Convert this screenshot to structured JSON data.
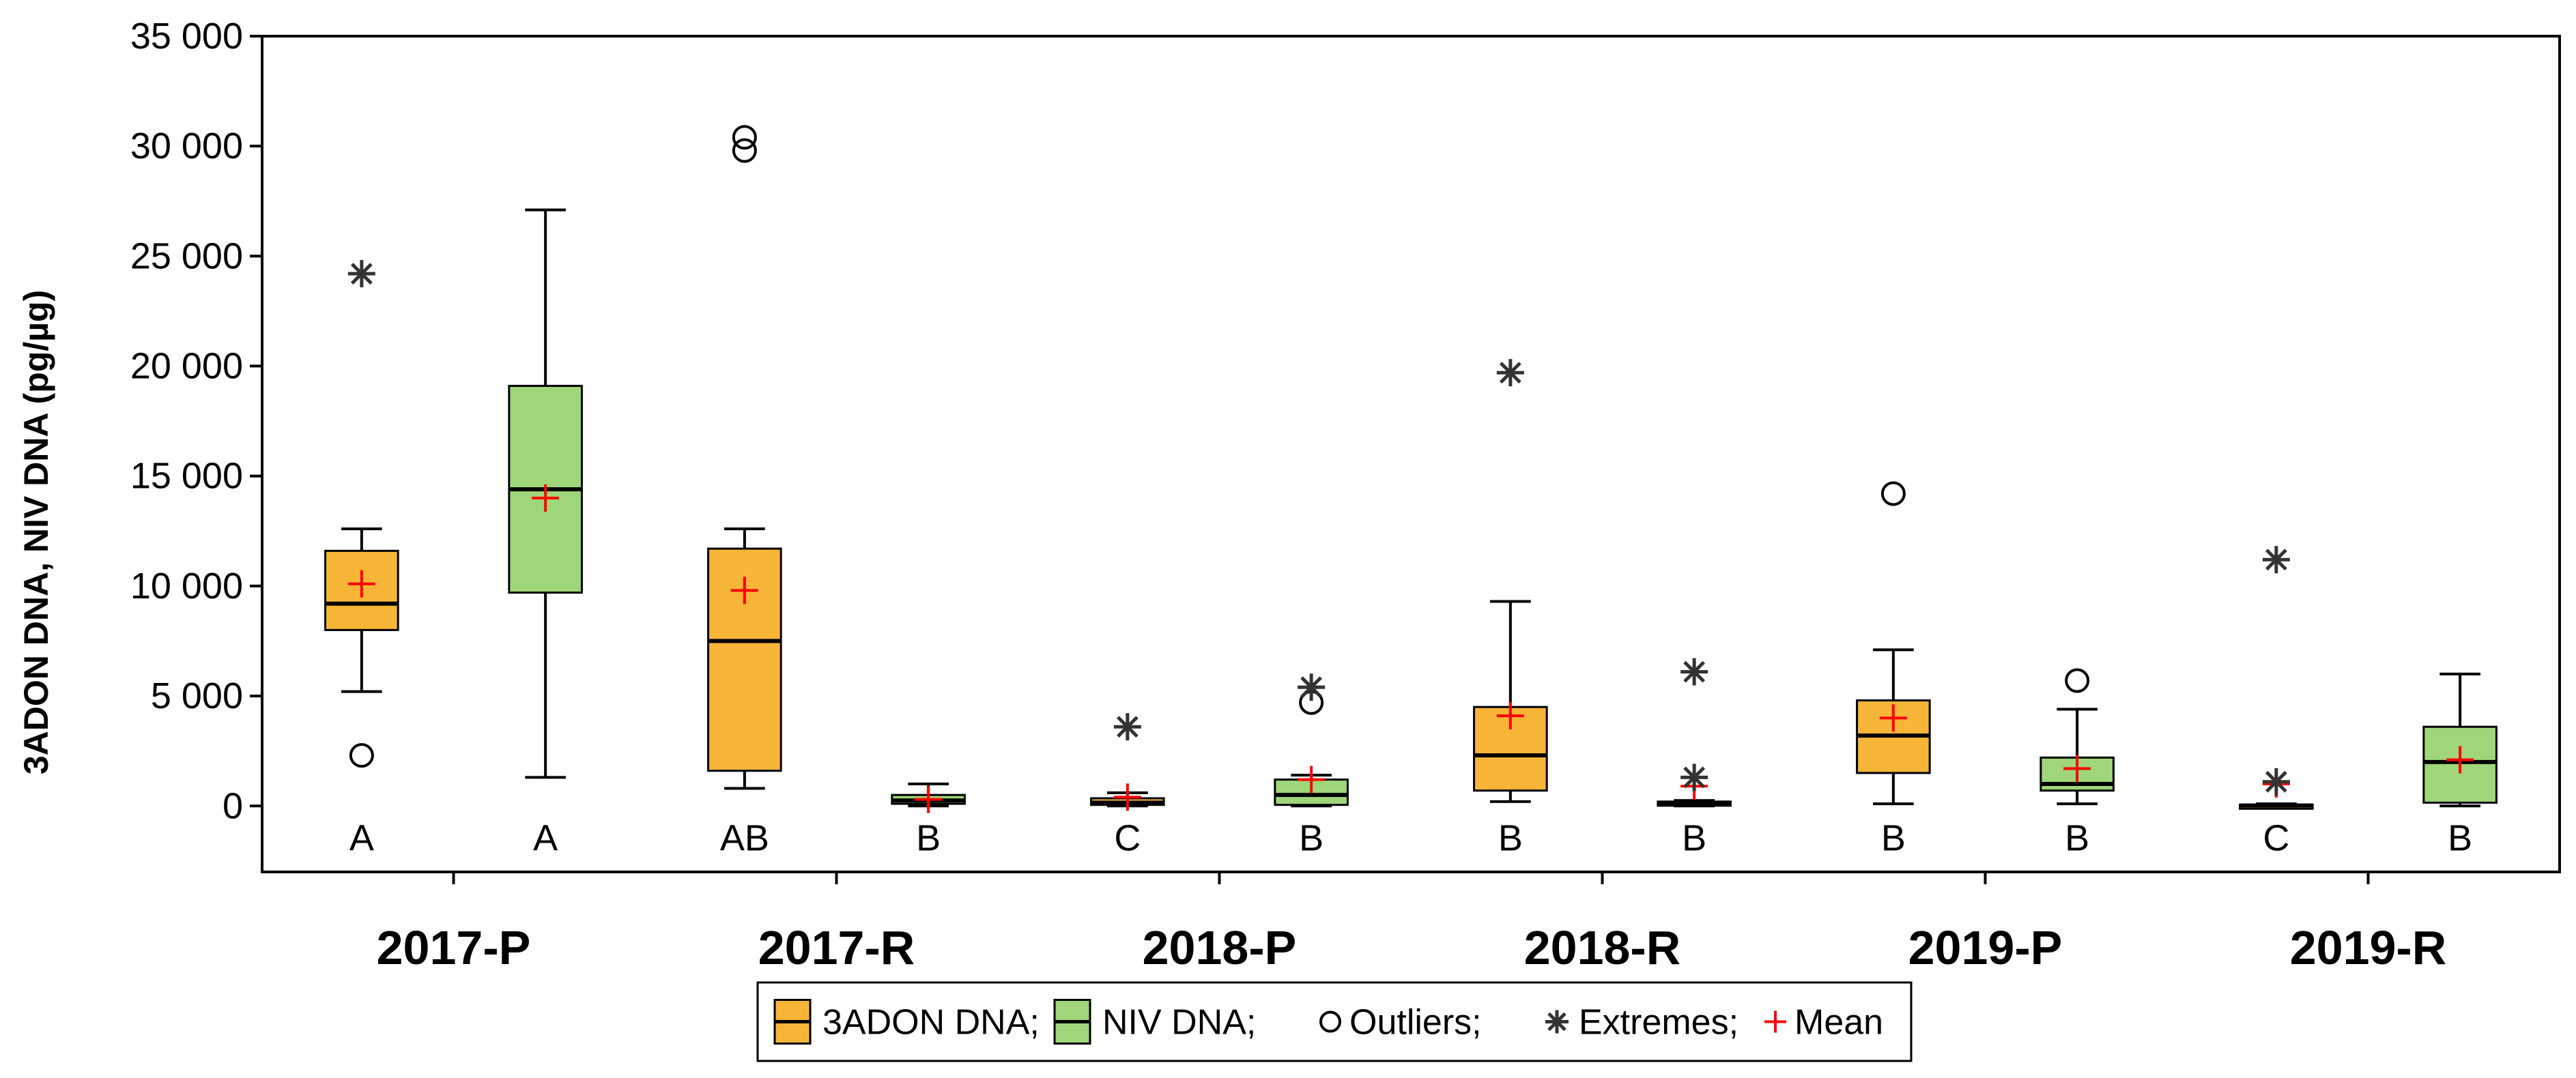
{
  "colors": {
    "series_3adon": "#f7b538",
    "series_niv": "#9fd67a",
    "mean": "#ff0000",
    "axis": "#000000"
  },
  "chart_data": {
    "type": "boxplot",
    "title": "",
    "ylabel": "3ADON DNA, NIV DNA (pg/µg)",
    "xlabel": "",
    "ylim": [
      -3000,
      35000
    ],
    "yticks": [
      0,
      5000,
      10000,
      15000,
      20000,
      25000,
      30000,
      35000
    ],
    "ytick_labels": [
      "0",
      "5 000",
      "10 000",
      "15 000",
      "20 000",
      "25 000",
      "30 000",
      "35 000"
    ],
    "categories": [
      "2017-P",
      "2017-R",
      "2018-P",
      "2018-R",
      "2019-P",
      "2019-R"
    ],
    "series": [
      {
        "name": "3ADON DNA",
        "boxes": [
          {
            "category": "2017-P",
            "whisker_low": 5200,
            "q1": 8000,
            "median": 9200,
            "q3": 11600,
            "whisker_high": 12600,
            "mean": 10100,
            "outliers": [
              2300
            ],
            "extremes": [
              24200
            ],
            "letter": "A"
          },
          {
            "category": "2017-R",
            "whisker_low": 800,
            "q1": 1600,
            "median": 7500,
            "q3": 11700,
            "whisker_high": 12600,
            "mean": 9800,
            "outliers": [
              29800,
              30400
            ],
            "extremes": [],
            "letter": "AB"
          },
          {
            "category": "2018-P",
            "whisker_low": 0,
            "q1": 50,
            "median": 150,
            "q3": 350,
            "whisker_high": 600,
            "mean": 400,
            "outliers": [],
            "extremes": [
              3600
            ],
            "letter": "C"
          },
          {
            "category": "2018-R",
            "whisker_low": 200,
            "q1": 700,
            "median": 2300,
            "q3": 4500,
            "whisker_high": 9300,
            "mean": 4100,
            "outliers": [],
            "extremes": [
              19700
            ],
            "letter": "B"
          },
          {
            "category": "2019-P",
            "whisker_low": 100,
            "q1": 1500,
            "median": 3200,
            "q3": 4800,
            "whisker_high": 7100,
            "mean": 4000,
            "outliers": [
              14200
            ],
            "extremes": [],
            "letter": "B"
          },
          {
            "category": "2019-R",
            "whisker_low": 0,
            "q1": 0,
            "median": 20,
            "q3": 60,
            "whisker_high": 100,
            "mean": 1000,
            "outliers": [],
            "extremes": [
              11200,
              1100
            ],
            "letter": "C"
          }
        ]
      },
      {
        "name": "NIV DNA",
        "boxes": [
          {
            "category": "2017-P",
            "whisker_low": 1300,
            "q1": 9700,
            "median": 14400,
            "q3": 19100,
            "whisker_high": 27100,
            "mean": 14000,
            "outliers": [],
            "extremes": [],
            "letter": "A"
          },
          {
            "category": "2017-R",
            "whisker_low": 0,
            "q1": 100,
            "median": 250,
            "q3": 500,
            "whisker_high": 1000,
            "mean": 300,
            "outliers": [],
            "extremes": [],
            "letter": "B"
          },
          {
            "category": "2018-P",
            "whisker_low": 0,
            "q1": 50,
            "median": 500,
            "q3": 1200,
            "whisker_high": 1400,
            "mean": 1200,
            "outliers": [
              4700
            ],
            "extremes": [
              5400
            ],
            "letter": "B"
          },
          {
            "category": "2018-R",
            "whisker_low": 0,
            "q1": 50,
            "median": 100,
            "q3": 200,
            "whisker_high": 250,
            "mean": 900,
            "outliers": [],
            "extremes": [
              6100,
              1300
            ],
            "letter": "B"
          },
          {
            "category": "2019-P",
            "whisker_low": 100,
            "q1": 700,
            "median": 1000,
            "q3": 2200,
            "whisker_high": 4400,
            "mean": 1700,
            "outliers": [
              5700
            ],
            "extremes": [],
            "letter": "B"
          },
          {
            "category": "2019-R",
            "whisker_low": 0,
            "q1": 150,
            "median": 2000,
            "q3": 3600,
            "whisker_high": 6000,
            "mean": 2100,
            "outliers": [],
            "extremes": [],
            "letter": "B"
          }
        ]
      }
    ],
    "legend": {
      "placement": "bottom-center",
      "entries": [
        "3ADON DNA;",
        "NIV DNA;",
        "Outliers;",
        "Extremes;",
        "Mean"
      ]
    },
    "grid": false
  }
}
